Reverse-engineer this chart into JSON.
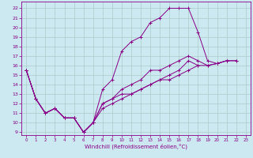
{
  "xlabel": "Windchill (Refroidissement éolien,°C)",
  "bg_color": "#cce8f0",
  "grid_color": "#aacccc",
  "line_color": "#880088",
  "ylim": [
    8.7,
    22.7
  ],
  "xlim": [
    -0.5,
    23.5
  ],
  "yticks": [
    9,
    10,
    11,
    12,
    13,
    14,
    15,
    16,
    17,
    18,
    19,
    20,
    21,
    22
  ],
  "xticks": [
    0,
    1,
    2,
    3,
    4,
    5,
    6,
    7,
    8,
    9,
    10,
    11,
    12,
    13,
    14,
    15,
    16,
    17,
    18,
    19,
    20,
    21,
    22,
    23
  ],
  "curves": [
    {
      "x": [
        0,
        1,
        2,
        3,
        4,
        5,
        6,
        7,
        8,
        9,
        10,
        11,
        12,
        13,
        14,
        15,
        16,
        17,
        18,
        19,
        20,
        21
      ],
      "y": [
        15.5,
        12.5,
        11.0,
        11.5,
        10.5,
        10.5,
        9.0,
        10.0,
        13.5,
        14.5,
        17.5,
        18.5,
        19.0,
        20.5,
        21.0,
        22.0,
        22.0,
        22.0,
        19.5,
        16.5,
        16.2,
        16.5
      ]
    },
    {
      "x": [
        0,
        1,
        2,
        3,
        4,
        5,
        6,
        7,
        8,
        9,
        10,
        11,
        12,
        13,
        14,
        15,
        16,
        17,
        18,
        19,
        20,
        21,
        22
      ],
      "y": [
        15.5,
        12.5,
        11.0,
        11.5,
        10.5,
        10.5,
        9.0,
        10.0,
        12.0,
        12.5,
        13.5,
        14.0,
        14.5,
        15.5,
        15.5,
        16.0,
        16.5,
        17.0,
        16.5,
        16.0,
        16.2,
        16.5,
        16.5
      ]
    },
    {
      "x": [
        0,
        1,
        2,
        3,
        4,
        5,
        6,
        7,
        8,
        9,
        10,
        11,
        12,
        13,
        14,
        15,
        16,
        17,
        18
      ],
      "y": [
        15.5,
        12.5,
        11.0,
        11.5,
        10.5,
        10.5,
        9.0,
        10.0,
        12.0,
        12.5,
        13.0,
        13.0,
        13.5,
        14.0,
        14.5,
        15.0,
        15.5,
        16.5,
        16.0
      ]
    },
    {
      "x": [
        0,
        1,
        2,
        3,
        4,
        5,
        6,
        7,
        8,
        9,
        10,
        11,
        12,
        13,
        14,
        15,
        16,
        17,
        18,
        19,
        20,
        21,
        22
      ],
      "y": [
        15.5,
        12.5,
        11.0,
        11.5,
        10.5,
        10.5,
        9.0,
        10.0,
        11.5,
        12.0,
        12.5,
        13.0,
        13.5,
        14.0,
        14.5,
        14.5,
        15.0,
        15.5,
        16.0,
        16.0,
        16.2,
        16.5,
        16.5
      ]
    }
  ]
}
